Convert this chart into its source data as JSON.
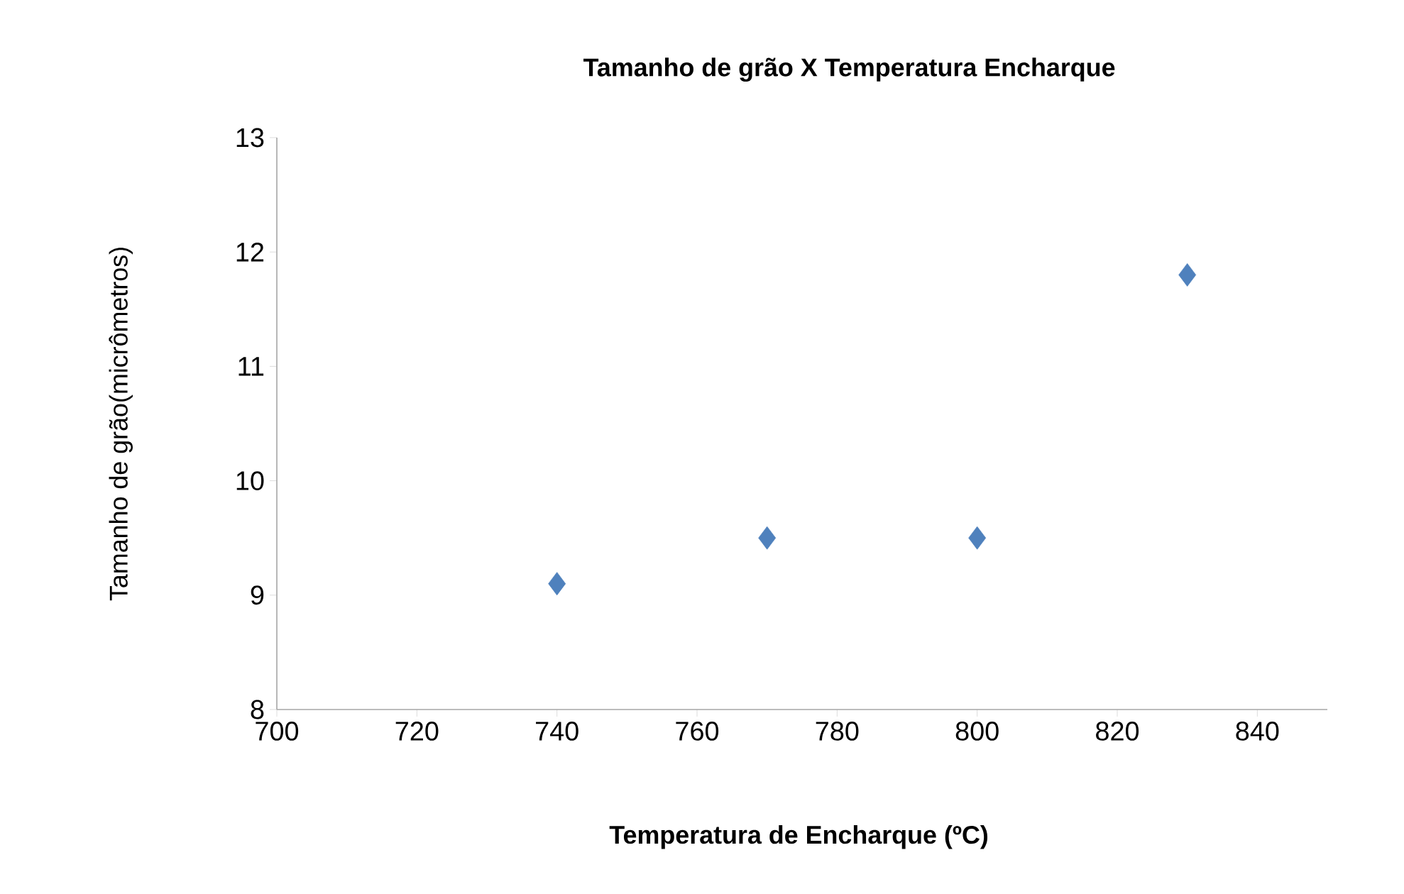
{
  "chart_data": {
    "type": "scatter",
    "title": "Tamanho de grão X Temperatura Encharque",
    "xlabel": "Temperatura de Encharque (ºC)",
    "ylabel": "Tamanho de grão(micrômetros)",
    "x": [
      740,
      770,
      800,
      830
    ],
    "values": [
      9.1,
      9.5,
      9.5,
      11.8
    ],
    "color": "#4f81bd",
    "marker": "diamond",
    "xlim": [
      700,
      850
    ],
    "ylim": [
      8,
      13
    ],
    "xticks": [
      700,
      720,
      740,
      760,
      780,
      800,
      820,
      840
    ],
    "yticks": [
      8,
      9,
      10,
      11,
      12,
      13
    ]
  }
}
